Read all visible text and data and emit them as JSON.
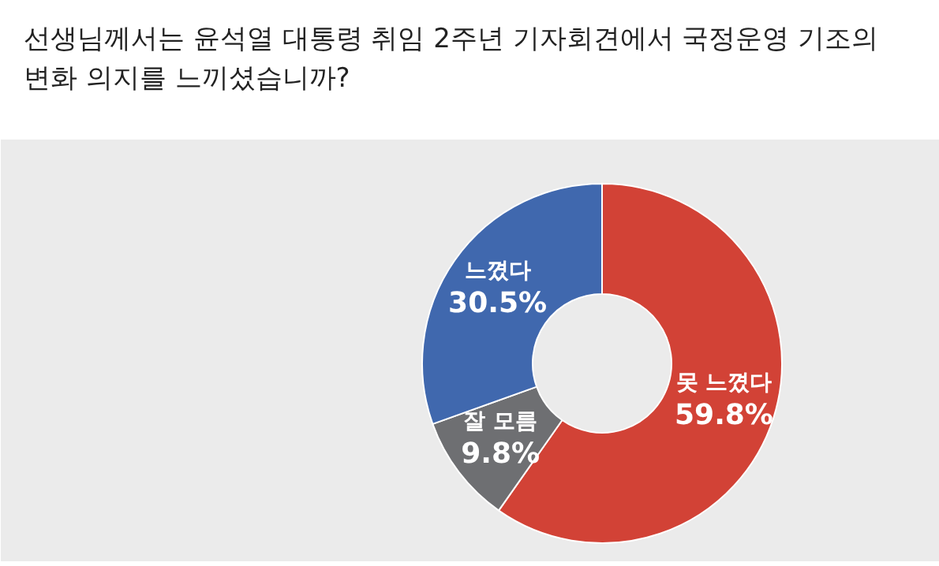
{
  "chart_data": {
    "type": "donut",
    "title": "선생님께서는 윤석열 대통령 취임 2주년 기자회견에서 국정운영 기조의\n변화 의지를 느끼셨습니까?",
    "categories": [
      "못 느꼈다",
      "잘 모름",
      "느꼈다"
    ],
    "values": [
      59.8,
      9.8,
      30.5
    ],
    "colors": [
      "#d24236",
      "#6e6f72",
      "#4068ae"
    ],
    "value_labels": [
      "59.8%",
      "9.8%",
      "30.5%"
    ]
  }
}
